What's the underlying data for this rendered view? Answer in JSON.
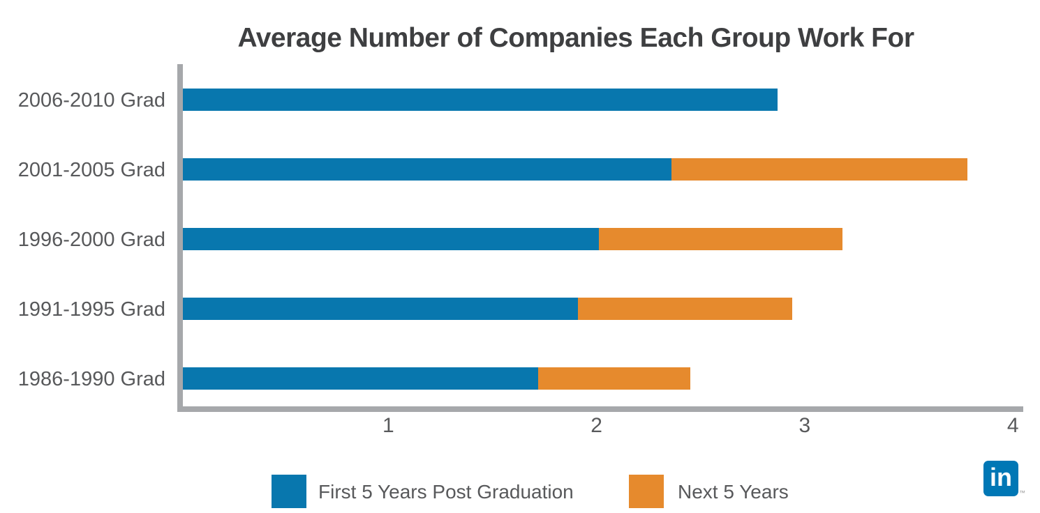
{
  "chart_data": {
    "type": "bar",
    "orientation": "horizontal",
    "stacked": true,
    "title": "Average Number of Companies Each Group Work For",
    "categories": [
      "2006-2010 Grad",
      "2001-2005 Grad",
      "1996-2000 Grad",
      "1991-1995 Grad",
      "1986-1990 Grad"
    ],
    "series": [
      {
        "name": "First 5 Years Post Graduation",
        "color": "#0877ae",
        "values": [
          2.87,
          2.36,
          2.01,
          1.91,
          1.72
        ]
      },
      {
        "name": "Next 5 Years",
        "color": "#e68a2d",
        "values": [
          0,
          1.42,
          1.17,
          1.03,
          0.73
        ]
      }
    ],
    "totals": [
      2.87,
      3.78,
      3.18,
      2.94,
      2.45
    ],
    "x_ticks": [
      "1",
      "2",
      "3",
      "4"
    ],
    "xlim": [
      0,
      4
    ],
    "grid": false,
    "legend_position": "bottom",
    "axis_color": "#a6a8ab",
    "label_color": "#58595b",
    "title_color": "#3e3f41"
  },
  "branding": {
    "logo_name": "linkedin-logo",
    "logo_text": "in",
    "trademark": "™",
    "logo_color": "#0077b5"
  }
}
